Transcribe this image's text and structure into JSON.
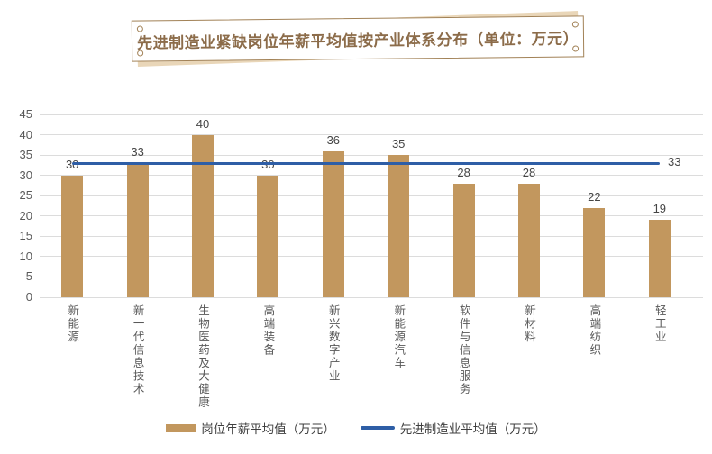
{
  "colors": {
    "bar": "#C2975E",
    "line": "#2E5EA6",
    "title": "#8C6C4A",
    "border": "#A28257",
    "backdrop": "#E9D6B8",
    "grid": "#DCDCDC",
    "axis": "#595959",
    "value": "#454545"
  },
  "chart_data": {
    "type": "bar",
    "title": "先进制造业紧缺岗位年薪平均值按产业体系分布（单位：万元）",
    "categories": [
      "新能源",
      "新一代信息技术",
      "生物医药及大健康",
      "高端装备",
      "新兴数字产业",
      "新能源汽车",
      "软件与信息服务",
      "新材料",
      "高端纺织",
      "轻工业"
    ],
    "series": [
      {
        "name": "岗位年薪平均值（万元）",
        "type": "bar",
        "values": [
          30,
          33,
          40,
          30,
          36,
          35,
          28,
          28,
          22,
          19
        ],
        "color": "#C2975E"
      },
      {
        "name": "先进制造业平均值（万元）",
        "type": "line",
        "constant_value": 33,
        "end_label": "33",
        "color": "#2E5EA6"
      }
    ],
    "ylim": [
      0,
      45
    ],
    "yticks": [
      0,
      5,
      10,
      15,
      20,
      25,
      30,
      35,
      40,
      45
    ],
    "grid": true,
    "legend_position": "bottom",
    "value_labels": true,
    "xlabel": "",
    "ylabel": ""
  }
}
